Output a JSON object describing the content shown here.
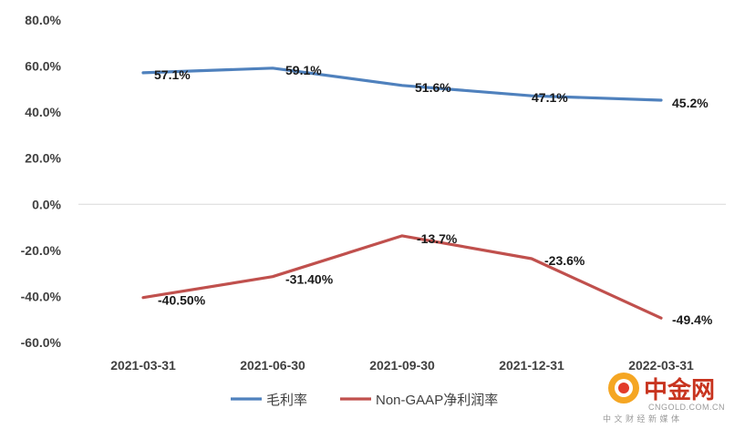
{
  "chart_data": {
    "type": "line",
    "categories": [
      "2021-03-31",
      "2021-06-30",
      "2021-09-30",
      "2021-12-31",
      "2022-03-31"
    ],
    "ylim": [
      -60,
      80
    ],
    "y_ticks": [
      "80.0%",
      "60.0%",
      "40.0%",
      "20.0%",
      "0.0%",
      "-20.0%",
      "-40.0%",
      "-60.0%"
    ],
    "y_tick_values": [
      80,
      60,
      40,
      20,
      0,
      -20,
      -40,
      -60
    ],
    "grid": false,
    "legend_position": "bottom",
    "series": [
      {
        "name": "毛利率",
        "color": "#4f81bd",
        "values": [
          57.1,
          59.1,
          51.6,
          47.1,
          45.2
        ],
        "labels": [
          "57.1%",
          "59.1%",
          "51.6%",
          "47.1%",
          "45.2%"
        ]
      },
      {
        "name": "Non-GAAP净利润率",
        "color": "#c0504d",
        "values": [
          -40.5,
          -31.4,
          -13.7,
          -23.6,
          -49.4
        ],
        "labels": [
          "-40.50%",
          "-31.40%",
          "-13.7%",
          "-23.6%",
          "-49.4%"
        ]
      }
    ]
  },
  "watermark": {
    "logo_text": "中金网",
    "site": "CNGOLD.COM.CN",
    "tagline": "中 文 财 经 新 媒 体"
  }
}
